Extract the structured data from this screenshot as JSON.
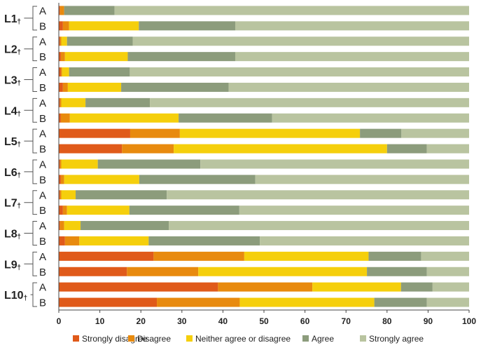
{
  "chart_data": {
    "type": "bar",
    "stacked": true,
    "orientation": "horizontal",
    "title": "",
    "xlabel": "",
    "ylabel": "",
    "xlim": [
      0,
      100
    ],
    "xticks": [
      0,
      10,
      20,
      30,
      40,
      50,
      60,
      70,
      80,
      90,
      100
    ],
    "colors": [
      "#e05a1a",
      "#e88a0e",
      "#f5cf0c",
      "#8c9c7c",
      "#b9c4a0"
    ],
    "legend_position": "bottom",
    "series_names": [
      "Strongly disagree",
      "Disagree",
      "Neither agree or disagree",
      "Agree",
      "Strongly agree"
    ],
    "groups": [
      {
        "label": "L1",
        "marker": "†",
        "rows": [
          {
            "label": "A",
            "values": [
              0.3,
              1,
              0,
              12.3,
              86.4
            ]
          },
          {
            "label": "B",
            "values": [
              1,
              1.5,
              17,
              23.5,
              57
            ]
          }
        ]
      },
      {
        "label": "L2",
        "marker": "†",
        "rows": [
          {
            "label": "A",
            "values": [
              0.3,
              0.3,
              1.4,
              16,
              82
            ]
          },
          {
            "label": "B",
            "values": [
              0.5,
              1,
              15.3,
              26.2,
              57
            ]
          }
        ]
      },
      {
        "label": "L3",
        "marker": "†",
        "rows": [
          {
            "label": "A",
            "values": [
              0.5,
              0.3,
              1.7,
              14.8,
              82.7
            ]
          },
          {
            "label": "B",
            "values": [
              1,
              1.2,
              13,
              26.2,
              58.6
            ]
          }
        ]
      },
      {
        "label": "L4",
        "marker": "†",
        "rows": [
          {
            "label": "A",
            "values": [
              0.3,
              0.3,
              5.9,
              15.7,
              77.8
            ]
          },
          {
            "label": "B",
            "values": [
              0.5,
              2.2,
              26.5,
              22.8,
              48
            ]
          }
        ]
      },
      {
        "label": "L5",
        "marker": "†",
        "rows": [
          {
            "label": "A",
            "values": [
              17.4,
              12.1,
              43.9,
              10.1,
              16.5
            ]
          },
          {
            "label": "B",
            "values": [
              15.4,
              12.6,
              52,
              9.7,
              10.3
            ]
          }
        ]
      },
      {
        "label": "L6",
        "marker": "†",
        "rows": [
          {
            "label": "A",
            "values": [
              0.3,
              0.3,
              8.9,
              25,
              65.5
            ]
          },
          {
            "label": "B",
            "values": [
              0.5,
              0.8,
              18.3,
              28.3,
              52.1
            ]
          }
        ]
      },
      {
        "label": "L7",
        "marker": "†",
        "rows": [
          {
            "label": "A",
            "values": [
              0.3,
              0.3,
              3.5,
              22.2,
              73.7
            ]
          },
          {
            "label": "B",
            "values": [
              1,
              1,
              15.2,
              26.8,
              56
            ]
          }
        ]
      },
      {
        "label": "L8",
        "marker": "†",
        "rows": [
          {
            "label": "A",
            "values": [
              0.3,
              1,
              4,
              21.5,
              73.2
            ]
          },
          {
            "label": "B",
            "values": [
              1.5,
              3.5,
              16.9,
              27.1,
              51
            ]
          }
        ]
      },
      {
        "label": "L9",
        "marker": "†",
        "rows": [
          {
            "label": "A",
            "values": [
              23.1,
              22.1,
              30.3,
              12.8,
              11.7
            ]
          },
          {
            "label": "B",
            "values": [
              16.6,
              17.4,
              41.1,
              14.6,
              10.3
            ]
          }
        ]
      },
      {
        "label": "L10",
        "marker": "†",
        "rows": [
          {
            "label": "A",
            "values": [
              38.8,
              23,
              21.6,
              7.7,
              8.9
            ]
          },
          {
            "label": "B",
            "values": [
              23.9,
              20.2,
              32.8,
              12.8,
              10.3
            ]
          }
        ]
      }
    ]
  }
}
